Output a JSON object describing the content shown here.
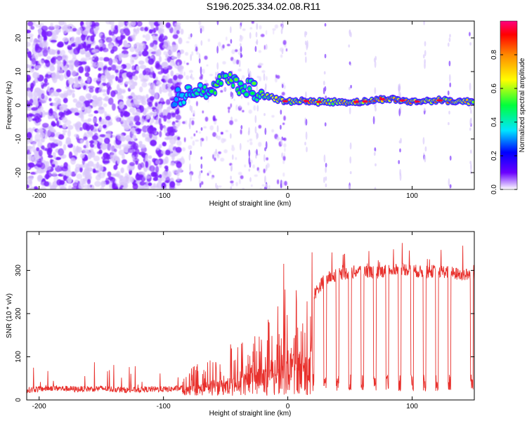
{
  "title": "S196.2025.334.02.08.R11",
  "chart_data": [
    {
      "type": "heatmap",
      "name": "spectrogram",
      "xlabel": "Height of straight line (km)",
      "ylabel": "Frequency (Hz)",
      "xlim": [
        -210,
        150
      ],
      "ylim": [
        -25,
        25
      ],
      "xticks": [
        -200,
        -100,
        0,
        100
      ],
      "yticks": [
        20,
        10,
        0,
        -10,
        -20
      ],
      "colorbar": {
        "label": "Normalized spectral amplitude",
        "range": [
          0.0,
          1.0
        ],
        "ticks": [
          0.0,
          0.2,
          0.4,
          0.6,
          0.8
        ],
        "tick_labels": [
          "0.0",
          "0.2",
          "0.4",
          "0.6",
          "0.8"
        ],
        "colormap": [
          "#ffffff",
          "#6a00ff",
          "#0000ff",
          "#00e5ff",
          "#00ff3c",
          "#ffff00",
          "#ff8800",
          "#ff0000",
          "#ff0080"
        ]
      },
      "description": "Broadband noise below -90 km; narrow carrier line near 0 Hz above -20 km, offset to about +8 Hz near -50 km",
      "carrier_track": {
        "x": [
          -90,
          -80,
          -70,
          -60,
          -50,
          -40,
          -30,
          -20,
          -10,
          0,
          10,
          20,
          40,
          60,
          80,
          100,
          120,
          150
        ],
        "freq": [
          2,
          3,
          4,
          5,
          8,
          6,
          5,
          3,
          2,
          1,
          1.5,
          1,
          1,
          1,
          2,
          1,
          1.5,
          1
        ],
        "amplitude": [
          0.35,
          0.4,
          0.45,
          0.5,
          0.6,
          0.55,
          0.5,
          0.55,
          0.65,
          0.7,
          0.8,
          0.75,
          0.7,
          0.8,
          0.85,
          0.8,
          0.8,
          0.75
        ]
      }
    },
    {
      "type": "line",
      "name": "snr",
      "xlabel": "Height of straight line (km)",
      "ylabel": "SNR (10 * v/v)",
      "xlim": [
        -210,
        150
      ],
      "ylim": [
        0,
        390
      ],
      "xticks": [
        -200,
        -100,
        0,
        100
      ],
      "yticks": [
        0,
        100,
        200,
        300
      ],
      "color": "#e8302c",
      "series": [
        {
          "name": "SNR",
          "x": [
            -210,
            -190,
            -170,
            -150,
            -130,
            -110,
            -95,
            -85,
            -80,
            -70,
            -60,
            -50,
            -40,
            -30,
            -20,
            -15,
            -10,
            -5,
            0,
            5,
            10,
            15,
            20,
            25,
            30,
            35,
            40,
            50,
            60,
            70,
            80,
            90,
            100,
            110,
            120,
            130,
            140,
            150
          ],
          "values": [
            20,
            25,
            22,
            24,
            20,
            22,
            22,
            25,
            40,
            50,
            60,
            70,
            80,
            90,
            110,
            130,
            170,
            200,
            180,
            190,
            140,
            150,
            240,
            260,
            280,
            285,
            290,
            295,
            300,
            295,
            300,
            305,
            300,
            295,
            300,
            295,
            290,
            290
          ]
        }
      ],
      "dropouts_x": [
        20,
        30,
        40,
        50,
        60,
        70,
        80,
        90,
        100,
        110,
        120,
        130,
        148
      ]
    }
  ]
}
